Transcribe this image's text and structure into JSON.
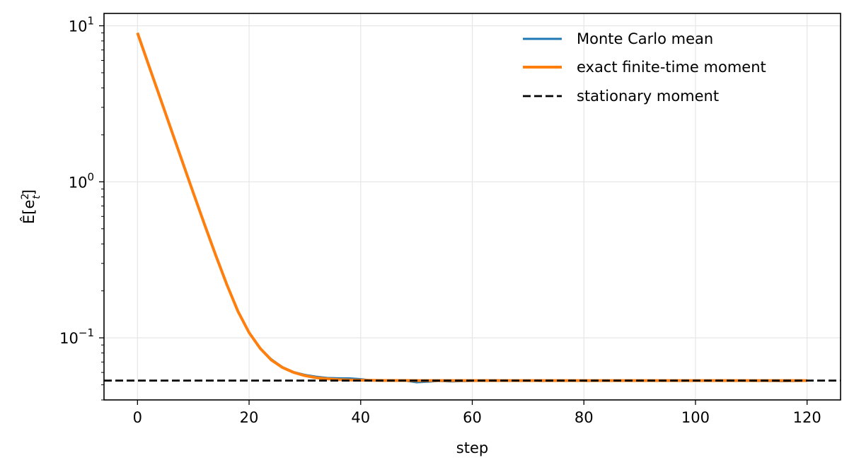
{
  "chart_data": {
    "type": "line",
    "title": "",
    "xlabel": "step",
    "ylabel": "Ê[e",
    "ylabel_sup": "2",
    "ylabel_sub": "t",
    "ylabel_close": "]",
    "y_scale": "log",
    "xlim": [
      -6,
      126
    ],
    "ylim": [
      0.04,
      12.0
    ],
    "x_ticks": [
      0,
      20,
      40,
      60,
      80,
      100,
      120
    ],
    "x_tick_labels": [
      "0",
      "20",
      "40",
      "60",
      "80",
      "100",
      "120"
    ],
    "y_ticks": [
      0.1,
      1,
      10
    ],
    "y_tick_labels": [
      {
        "base": "10",
        "exp": "−1"
      },
      {
        "base": "10",
        "exp": "0"
      },
      {
        "base": "10",
        "exp": "1"
      }
    ],
    "grid": true,
    "legend_position": "top-right",
    "series": [
      {
        "name": "Monte Carlo mean",
        "color": "#1f77b4",
        "style": "solid",
        "x": [
          0,
          2,
          4,
          6,
          8,
          10,
          12,
          14,
          16,
          18,
          20,
          22,
          24,
          26,
          28,
          30,
          32,
          34,
          36,
          38,
          40,
          42,
          44,
          46,
          48,
          50,
          52,
          54,
          56,
          58,
          60,
          62,
          64,
          66,
          68,
          70,
          72,
          74,
          76,
          78,
          80,
          82,
          84,
          86,
          88,
          90,
          92,
          94,
          96,
          98,
          100,
          102,
          104,
          106,
          108,
          110,
          112,
          114,
          116,
          118,
          120
        ],
        "y": [
          9.0,
          5.6,
          3.5,
          2.18,
          1.36,
          0.85,
          0.535,
          0.34,
          0.22,
          0.148,
          0.108,
          0.086,
          0.073,
          0.065,
          0.0605,
          0.058,
          0.0565,
          0.0555,
          0.0552,
          0.0551,
          0.0545,
          0.0535,
          0.0535,
          0.053,
          0.053,
          0.0518,
          0.0522,
          0.0528,
          0.0524,
          0.0526,
          0.0528,
          0.0535,
          0.0537,
          0.0533,
          0.053,
          0.0533,
          0.0528,
          0.0528,
          0.053,
          0.053,
          0.0528,
          0.0528,
          0.053,
          0.053,
          0.053,
          0.0532,
          0.0532,
          0.0528,
          0.053,
          0.0528,
          0.0532,
          0.0532,
          0.0535,
          0.0535,
          0.0533,
          0.0528,
          0.0528,
          0.0527,
          0.0526,
          0.0527,
          0.053
        ]
      },
      {
        "name": "exact finite-time moment",
        "color": "#ff7f0e",
        "style": "solid",
        "x": [
          0,
          2,
          4,
          6,
          8,
          10,
          12,
          14,
          16,
          18,
          20,
          22,
          24,
          26,
          28,
          30,
          32,
          34,
          36,
          38,
          40,
          42,
          44,
          46,
          48,
          50,
          60,
          70,
          80,
          90,
          100,
          110,
          120
        ],
        "y": [
          9.0,
          5.6,
          3.5,
          2.18,
          1.36,
          0.85,
          0.535,
          0.34,
          0.22,
          0.148,
          0.108,
          0.0855,
          0.072,
          0.0645,
          0.06,
          0.0572,
          0.0555,
          0.0546,
          0.054,
          0.0537,
          0.0535,
          0.0534,
          0.0533,
          0.0533,
          0.0533,
          0.0532,
          0.0532,
          0.0532,
          0.0532,
          0.0532,
          0.0532,
          0.0532,
          0.0532
        ]
      },
      {
        "name": "stationary moment",
        "color": "#000000",
        "style": "dashed",
        "hline": 0.0532
      }
    ]
  }
}
